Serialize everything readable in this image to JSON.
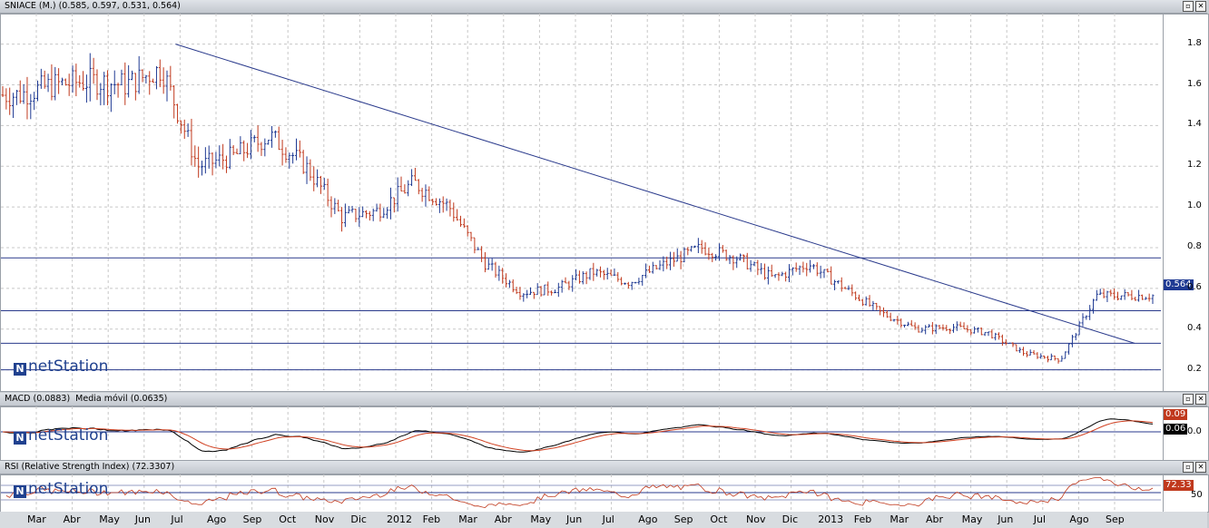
{
  "price_panel": {
    "title": "SNIACE (M.) (0.585, 0.597, 0.531, 0.564)",
    "last_value": "0.564",
    "ticks": [
      "1.8",
      "1.6",
      "1.4",
      "1.2",
      "1.0",
      "0.8",
      "0.6",
      "0.4",
      "0.2"
    ],
    "logo": "netStation"
  },
  "macd_panel": {
    "title": "MACD (0.0883)",
    "signal_title": "Media móvil (0.0635)",
    "value_macd": "0.09",
    "value_signal": "0.06",
    "zero_label": "0.0",
    "logo": "netStation"
  },
  "rsi_panel": {
    "title": "RSI (Relative Strength Index) (72.3307)",
    "value": "72.33",
    "level_label": "50",
    "logo": "netStation"
  },
  "window_buttons": {
    "minimize": "▫",
    "close": "✕"
  },
  "colors": {
    "bull": "#1f3a93",
    "bear": "#c0391d",
    "line": "#2a3a8c",
    "macd": "#000000",
    "signal": "#d04020",
    "rsi": "#c0391d",
    "grid": "#c8c8c8"
  },
  "chart_data": [
    {
      "type": "candlestick",
      "title": "SNIACE (M.) (0.585, 0.597, 0.531, 0.564)",
      "x_labels": [
        "Mar",
        "Abr",
        "May",
        "Jun",
        "Jul",
        "Ago",
        "Sep",
        "Oct",
        "Nov",
        "Dic",
        "2012",
        "Feb",
        "Mar",
        "Abr",
        "May",
        "Jun",
        "Jul",
        "Ago",
        "Sep",
        "Oct",
        "Nov",
        "Dic",
        "2013",
        "Feb",
        "Mar",
        "Abr",
        "May",
        "Jun",
        "Jul",
        "Ago",
        "Sep"
      ],
      "ylim": [
        0.1,
        1.95
      ],
      "close_by_month": [
        1.55,
        1.6,
        1.62,
        1.6,
        1.68,
        1.2,
        1.25,
        1.35,
        1.2,
        0.95,
        0.98,
        1.12,
        1.0,
        0.72,
        0.58,
        0.6,
        0.68,
        0.63,
        0.72,
        0.8,
        0.75,
        0.65,
        0.72,
        0.6,
        0.48,
        0.4,
        0.41,
        0.38,
        0.28,
        0.25,
        0.564
      ],
      "horizontal_lines": [
        0.2,
        0.33,
        0.49,
        0.75
      ],
      "trendline": {
        "from": {
          "x": "Jul 2011",
          "y": 1.8
        },
        "to": {
          "x": "Sep 2013",
          "y": 0.33
        }
      },
      "last": {
        "open": 0.585,
        "high": 0.597,
        "low": 0.531,
        "close": 0.564
      },
      "grid": true
    },
    {
      "type": "line",
      "title": "MACD (0.0883)",
      "series": [
        {
          "name": "MACD",
          "last": 0.0883
        },
        {
          "name": "Media móvil",
          "last": 0.0635
        }
      ],
      "zero_line": 0.0
    },
    {
      "type": "line",
      "title": "RSI (Relative Strength Index) (72.3307)",
      "series": [
        {
          "name": "RSI",
          "last": 72.3307
        }
      ],
      "level": 50
    }
  ]
}
